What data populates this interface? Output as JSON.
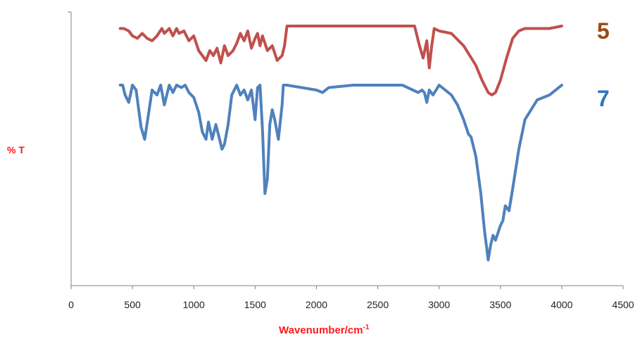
{
  "chart_data": {
    "type": "line",
    "title": "",
    "xlabel_main": "Wavenumber/cm",
    "xlabel_sup": "-1",
    "ylabel": "% T",
    "xlim": [
      0,
      4500
    ],
    "xticks": [
      "0",
      "500",
      "1000",
      "1500",
      "2000",
      "2500",
      "3000",
      "3500",
      "4000",
      "4500"
    ],
    "grid": false,
    "series": [
      {
        "name": "5",
        "color": "#c0504d",
        "x": [
          400,
          430,
          470,
          500,
          540,
          580,
          620,
          660,
          700,
          740,
          760,
          800,
          830,
          860,
          880,
          920,
          960,
          1000,
          1040,
          1070,
          1100,
          1130,
          1160,
          1190,
          1220,
          1250,
          1280,
          1320,
          1350,
          1380,
          1410,
          1440,
          1470,
          1500,
          1520,
          1540,
          1560,
          1600,
          1640,
          1680,
          1720,
          1740,
          1760,
          1800,
          2000,
          2200,
          2500,
          2800,
          2840,
          2870,
          2900,
          2920,
          2940,
          2960,
          3000,
          3100,
          3200,
          3300,
          3350,
          3400,
          3430,
          3460,
          3500,
          3550,
          3600,
          3650,
          3700,
          3800,
          3900,
          4000
        ],
        "y": [
          97,
          97,
          96,
          94,
          93,
          95,
          93,
          92,
          94,
          97,
          95,
          97,
          94,
          97,
          95,
          96,
          92,
          94,
          88,
          86,
          84,
          88,
          86,
          89,
          83,
          90,
          86,
          88,
          91,
          95,
          92,
          96,
          89,
          93,
          95,
          90,
          94,
          88,
          90,
          84,
          86,
          90,
          98,
          98,
          98,
          98,
          98,
          98,
          90,
          85,
          92,
          81,
          90,
          97,
          96,
          95,
          90,
          82,
          76,
          71,
          70,
          71,
          76,
          85,
          93,
          96,
          97,
          97,
          97,
          98
        ]
      },
      {
        "name": "7",
        "color": "#4f81bd",
        "x": [
          400,
          420,
          440,
          470,
          500,
          530,
          570,
          600,
          630,
          660,
          700,
          730,
          760,
          800,
          830,
          860,
          900,
          930,
          960,
          1000,
          1040,
          1070,
          1100,
          1120,
          1150,
          1180,
          1200,
          1230,
          1250,
          1280,
          1310,
          1350,
          1380,
          1410,
          1440,
          1470,
          1500,
          1520,
          1540,
          1560,
          1580,
          1600,
          1620,
          1640,
          1660,
          1690,
          1720,
          1730,
          1760,
          2000,
          2050,
          2100,
          2300,
          2500,
          2700,
          2830,
          2860,
          2880,
          2900,
          2920,
          2950,
          3000,
          3050,
          3100,
          3150,
          3200,
          3240,
          3260,
          3300,
          3340,
          3370,
          3400,
          3420,
          3440,
          3460,
          3500,
          3520,
          3540,
          3570,
          3600,
          3650,
          3700,
          3800,
          3900,
          4000
        ],
        "y": [
          74,
          74,
          70,
          67,
          74,
          72,
          57,
          52,
          62,
          72,
          70,
          74,
          66,
          74,
          71,
          74,
          73,
          74,
          71,
          69,
          63,
          55,
          52,
          59,
          52,
          58,
          54,
          48,
          50,
          58,
          70,
          74,
          70,
          72,
          68,
          72,
          60,
          73,
          74,
          56,
          30,
          36,
          58,
          64,
          60,
          52,
          66,
          74,
          74,
          72,
          71,
          73,
          74,
          74,
          74,
          71,
          72,
          71,
          67,
          72,
          70,
          74,
          72,
          70,
          66,
          60,
          54,
          53,
          45,
          30,
          15,
          3,
          9,
          13,
          11,
          17,
          19,
          25,
          23,
          32,
          48,
          60,
          68,
          70,
          74
        ]
      }
    ]
  }
}
